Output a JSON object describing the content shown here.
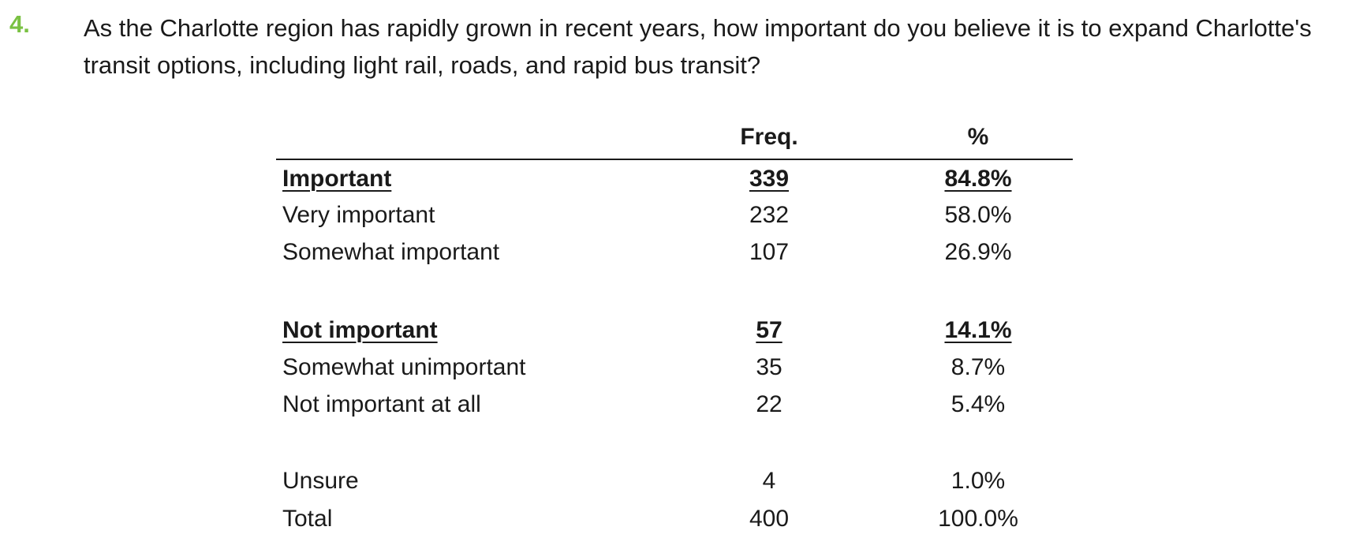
{
  "question": {
    "number": "4.",
    "text": "As the Charlotte region has rapidly grown in recent years, how important do you believe it is to expand Charlotte's transit options, including light rail, roads, and rapid bus transit?"
  },
  "table": {
    "headers": {
      "label": "",
      "freq": "Freq.",
      "percent": "%"
    },
    "rows": [
      {
        "label": "Important",
        "freq": "339",
        "percent": "84.8%",
        "group": true
      },
      {
        "label": "Very important",
        "freq": "232",
        "percent": "58.0%",
        "group": false
      },
      {
        "label": "Somewhat important",
        "freq": "107",
        "percent": "26.9%",
        "group": false
      },
      {
        "label": "Not important",
        "freq": "57",
        "percent": "14.1%",
        "group": true
      },
      {
        "label": "Somewhat unimportant",
        "freq": "35",
        "percent": "8.7%",
        "group": false
      },
      {
        "label": "Not important at all",
        "freq": "22",
        "percent": "5.4%",
        "group": false
      },
      {
        "label": "Unsure",
        "freq": "4",
        "percent": "1.0%",
        "group": false
      },
      {
        "label": "Total",
        "freq": "400",
        "percent": "100.0%",
        "group": false
      }
    ]
  },
  "colors": {
    "question_number": "#7ac143",
    "text": "#1a1a1a"
  }
}
